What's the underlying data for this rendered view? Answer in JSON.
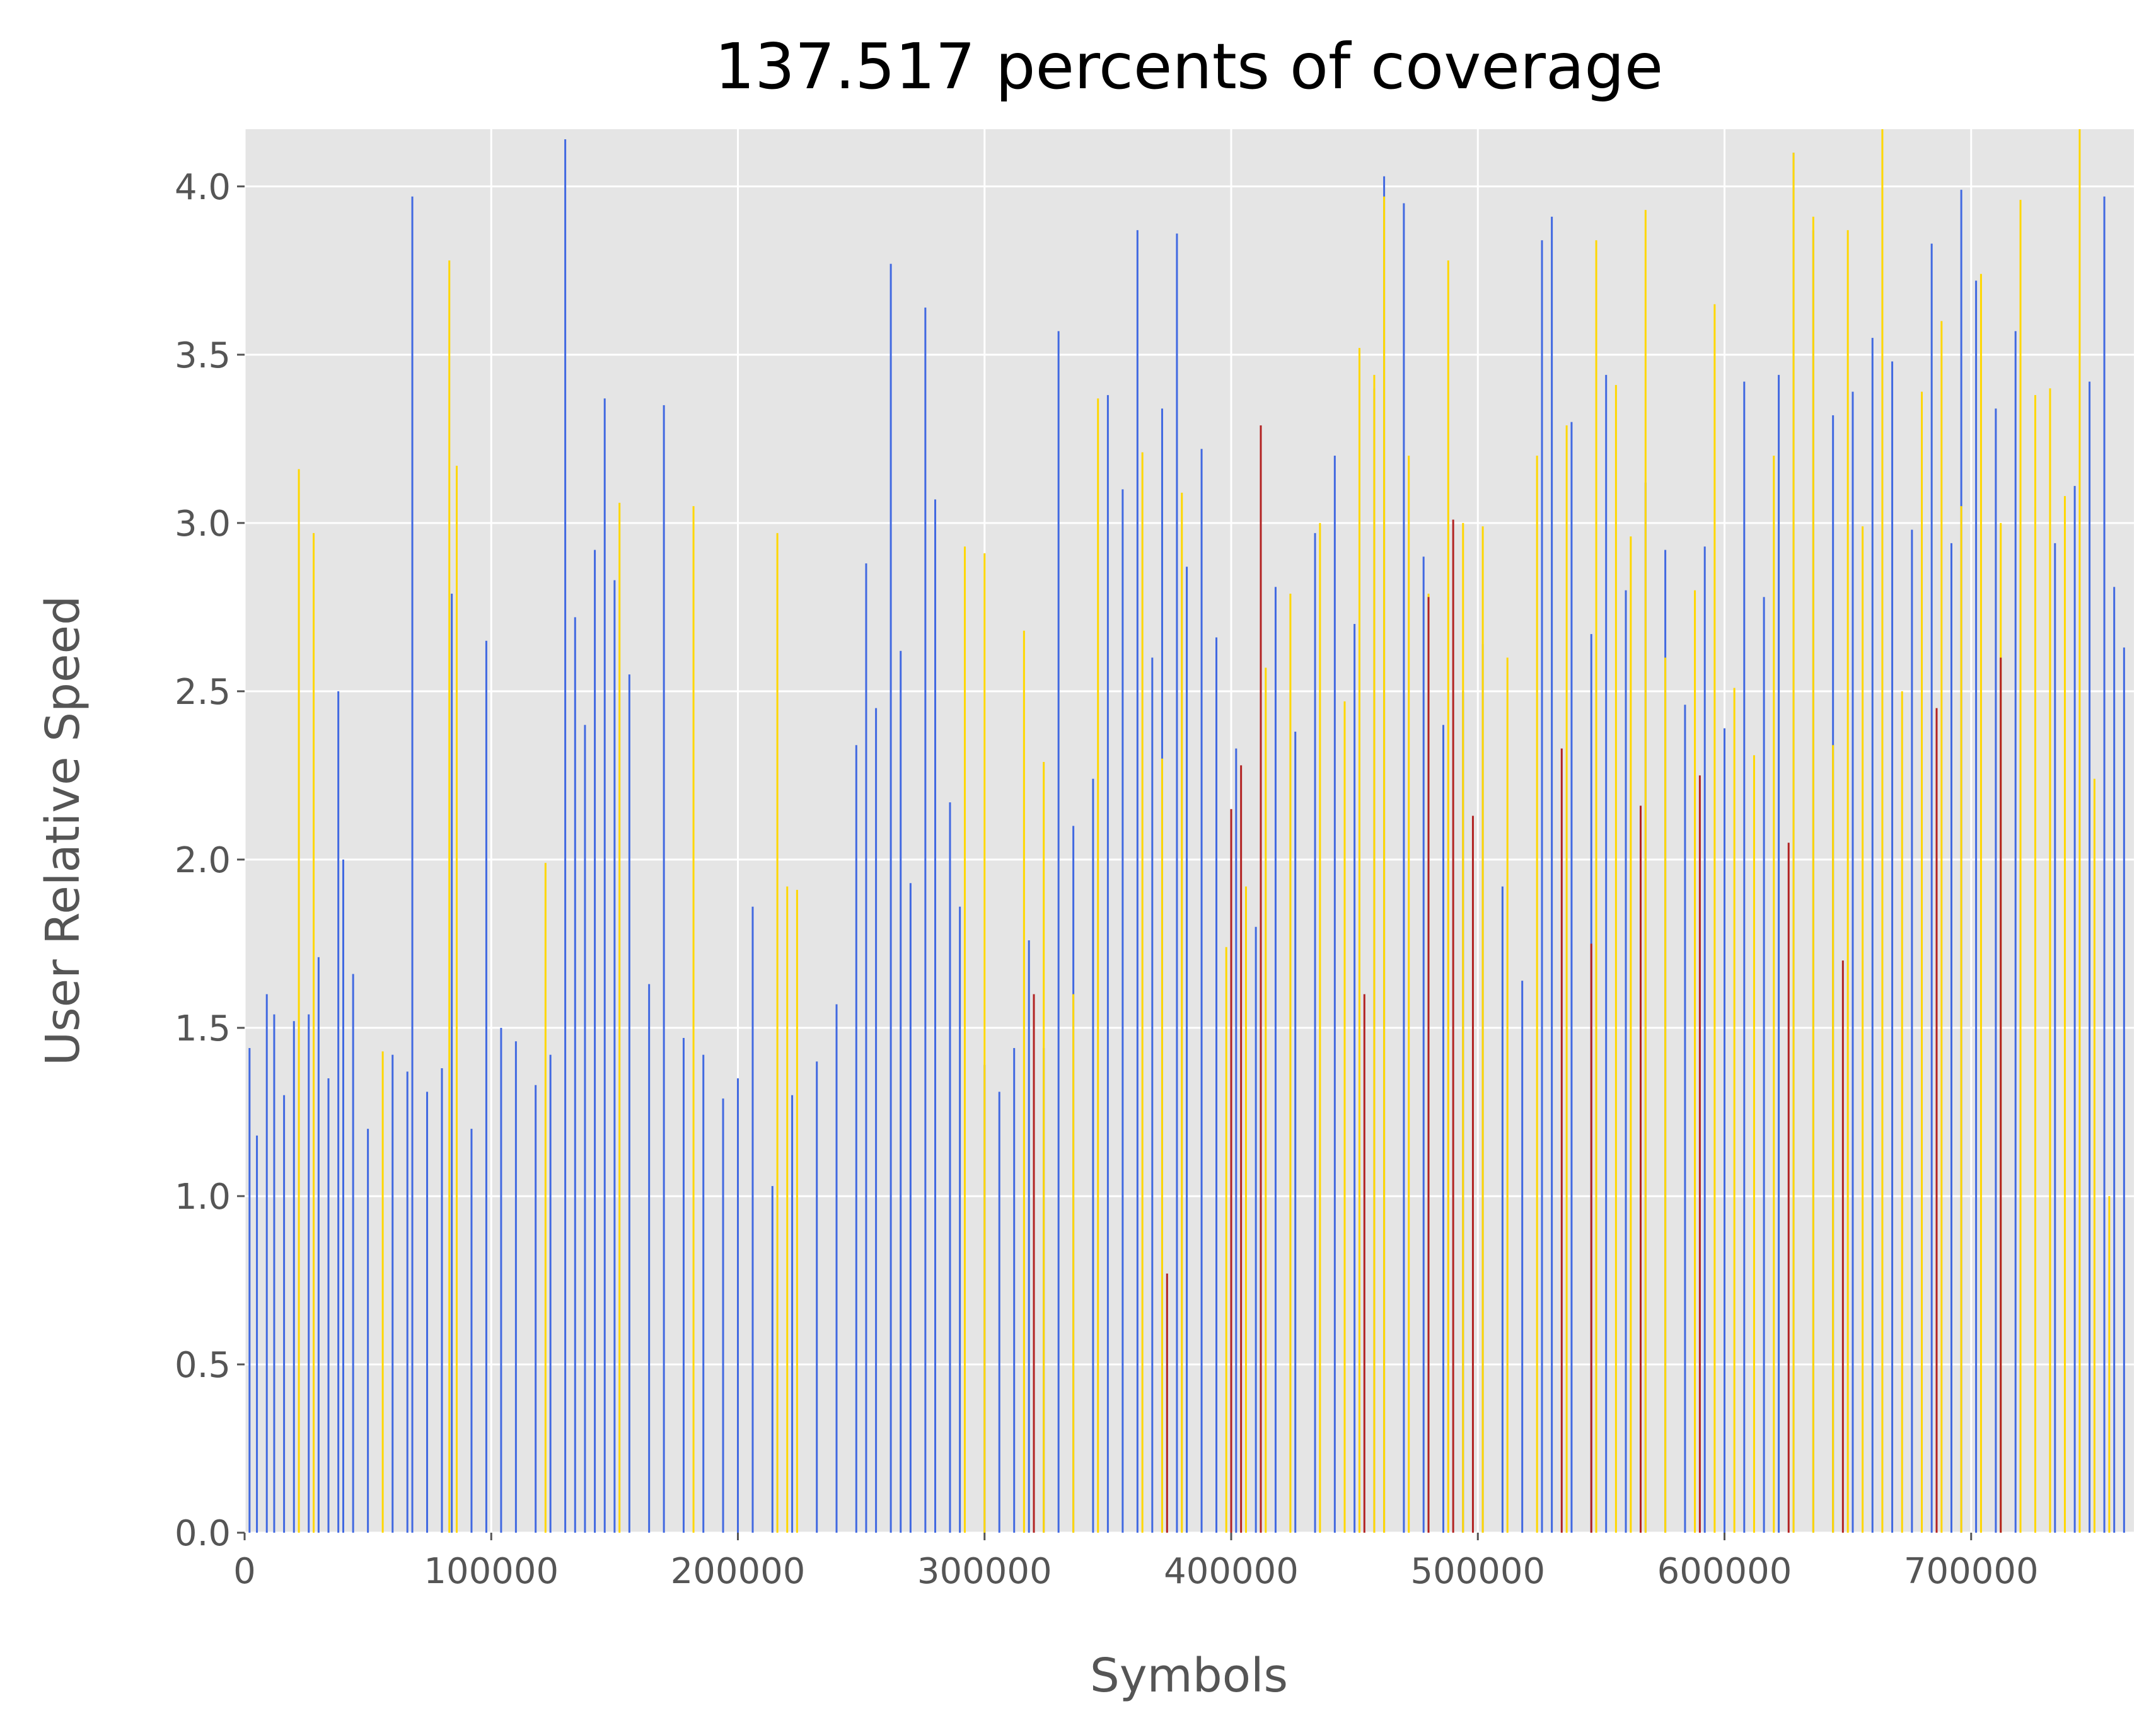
{
  "chart_data": {
    "type": "bar",
    "title": "137.517 percents of coverage",
    "xlabel": "Symbols",
    "ylabel": "User Relative Speed",
    "xlim": [
      0,
      766000
    ],
    "ylim": [
      0,
      4.17
    ],
    "x_ticks": [
      0,
      100000,
      200000,
      300000,
      400000,
      500000,
      600000,
      700000
    ],
    "x_tick_labels": [
      "0",
      "100000",
      "200000",
      "300000",
      "400000",
      "500000",
      "600000",
      "700000"
    ],
    "y_ticks": [
      0.0,
      0.5,
      1.0,
      1.5,
      2.0,
      2.5,
      3.0,
      3.5,
      4.0
    ],
    "y_tick_labels": [
      "0.0",
      "0.5",
      "1.0",
      "1.5",
      "2.0",
      "2.5",
      "3.0",
      "3.5",
      "4.0"
    ],
    "grid": true,
    "style": "ggplot",
    "colors": {
      "background": "#e5e5e5",
      "grid": "#ffffff",
      "series_blue": "#4169e1",
      "series_gold": "#ffd700",
      "series_red": "#b22222"
    },
    "series": [
      {
        "color": "#4169e1",
        "x": [
          2000,
          5000,
          9000,
          12000,
          16000,
          20000,
          26000,
          30000,
          34000,
          38000,
          40000,
          44000,
          50000,
          60000,
          66000,
          68000,
          74000,
          80000,
          84000,
          92000,
          98000,
          104000,
          110000,
          118000,
          124000,
          130000,
          134000,
          138000,
          142000,
          146000,
          150000,
          156000,
          164000,
          170000,
          178000,
          186000,
          194000,
          200000,
          206000,
          214000,
          222000,
          232000,
          240000,
          248000,
          252000,
          256000,
          262000,
          266000,
          270000,
          276000,
          280000,
          286000,
          290000,
          300000,
          306000,
          312000,
          318000,
          324000,
          330000,
          336000,
          344000,
          350000,
          356000,
          362000,
          368000,
          372000,
          378000,
          382000,
          388000,
          394000,
          402000,
          410000,
          418000,
          426000,
          434000,
          442000,
          450000,
          458000,
          462000,
          470000,
          478000,
          486000,
          494000,
          502000,
          510000,
          518000,
          526000,
          530000,
          538000,
          546000,
          552000,
          560000,
          568000,
          576000,
          584000,
          592000,
          600000,
          608000,
          616000,
          622000,
          628000,
          636000,
          644000,
          652000,
          660000,
          668000,
          676000,
          684000,
          692000,
          696000,
          702000,
          710000,
          718000,
          726000,
          734000,
          742000,
          748000,
          754000,
          758000,
          762000
        ],
        "values": [
          1.44,
          1.18,
          1.6,
          1.54,
          1.3,
          1.52,
          1.54,
          1.71,
          1.35,
          2.5,
          2.0,
          1.66,
          1.2,
          1.42,
          1.37,
          3.97,
          1.31,
          1.38,
          2.79,
          1.2,
          2.65,
          1.5,
          1.46,
          1.33,
          1.42,
          4.14,
          2.72,
          2.4,
          2.92,
          3.37,
          2.83,
          2.55,
          1.63,
          3.35,
          1.47,
          1.42,
          1.29,
          1.35,
          1.86,
          1.03,
          1.3,
          1.4,
          1.57,
          2.34,
          2.88,
          2.45,
          3.77,
          2.62,
          1.93,
          3.64,
          3.07,
          2.17,
          1.86,
          1.39,
          1.31,
          1.44,
          1.76,
          1.44,
          3.57,
          2.1,
          2.24,
          3.38,
          3.1,
          3.87,
          2.6,
          3.34,
          3.86,
          2.87,
          3.22,
          2.66,
          2.33,
          1.8,
          2.81,
          2.38,
          2.97,
          3.2,
          2.7,
          3.4,
          4.03,
          3.95,
          2.9,
          2.4,
          2.5,
          2.64,
          1.92,
          1.64,
          3.84,
          3.91,
          3.3,
          2.67,
          3.44,
          2.8,
          3.12,
          2.92,
          2.46,
          2.93,
          2.39,
          3.42,
          2.78,
          3.44,
          4.1,
          3.87,
          3.32,
          3.39,
          3.55,
          3.48,
          2.98,
          3.83,
          2.94,
          3.99,
          3.72,
          3.34,
          3.57,
          3.05,
          2.94,
          3.11,
          3.42,
          3.97,
          2.81,
          2.63
        ]
      },
      {
        "color": "#ffd700",
        "x": [
          22000,
          28000,
          56000,
          83000,
          86000,
          122000,
          152000,
          182000,
          216000,
          220000,
          224000,
          292000,
          300000,
          316000,
          324000,
          336000,
          346000,
          364000,
          372000,
          380000,
          398000,
          406000,
          414000,
          424000,
          436000,
          446000,
          452000,
          458000,
          462000,
          472000,
          480000,
          488000,
          494000,
          502000,
          512000,
          524000,
          536000,
          548000,
          556000,
          562000,
          568000,
          576000,
          588000,
          596000,
          604000,
          612000,
          620000,
          628000,
          636000,
          644000,
          650000,
          656000,
          664000,
          672000,
          680000,
          688000,
          696000,
          704000,
          712000,
          720000,
          726000,
          732000,
          738000,
          744000,
          750000,
          756000
        ],
        "values": [
          3.16,
          2.97,
          1.43,
          3.78,
          3.17,
          1.99,
          3.06,
          3.05,
          2.97,
          1.92,
          1.91,
          2.93,
          2.91,
          2.68,
          2.29,
          1.6,
          3.37,
          3.21,
          2.3,
          3.09,
          1.74,
          1.92,
          2.57,
          2.79,
          3.0,
          2.47,
          3.52,
          3.44,
          3.97,
          3.2,
          2.79,
          3.78,
          3.0,
          2.99,
          2.6,
          3.2,
          3.29,
          3.84,
          3.41,
          2.96,
          3.93,
          2.6,
          2.8,
          3.65,
          2.51,
          2.31,
          3.2,
          4.1,
          3.91,
          2.34,
          3.87,
          2.99,
          4.17,
          2.5,
          3.39,
          3.6,
          3.05,
          3.74,
          3.0,
          3.96,
          3.38,
          3.4,
          3.08,
          4.17,
          2.24,
          1.0
        ]
      },
      {
        "color": "#b22222",
        "x": [
          320000,
          374000,
          400000,
          404000,
          412000,
          454000,
          480000,
          490000,
          498000,
          534000,
          546000,
          566000,
          590000,
          626000,
          648000,
          686000,
          712000
        ],
        "values": [
          1.6,
          0.77,
          2.15,
          2.28,
          3.29,
          1.6,
          2.78,
          3.01,
          2.13,
          2.33,
          1.75,
          2.16,
          2.25,
          2.05,
          1.7,
          2.45,
          2.6
        ]
      }
    ]
  }
}
